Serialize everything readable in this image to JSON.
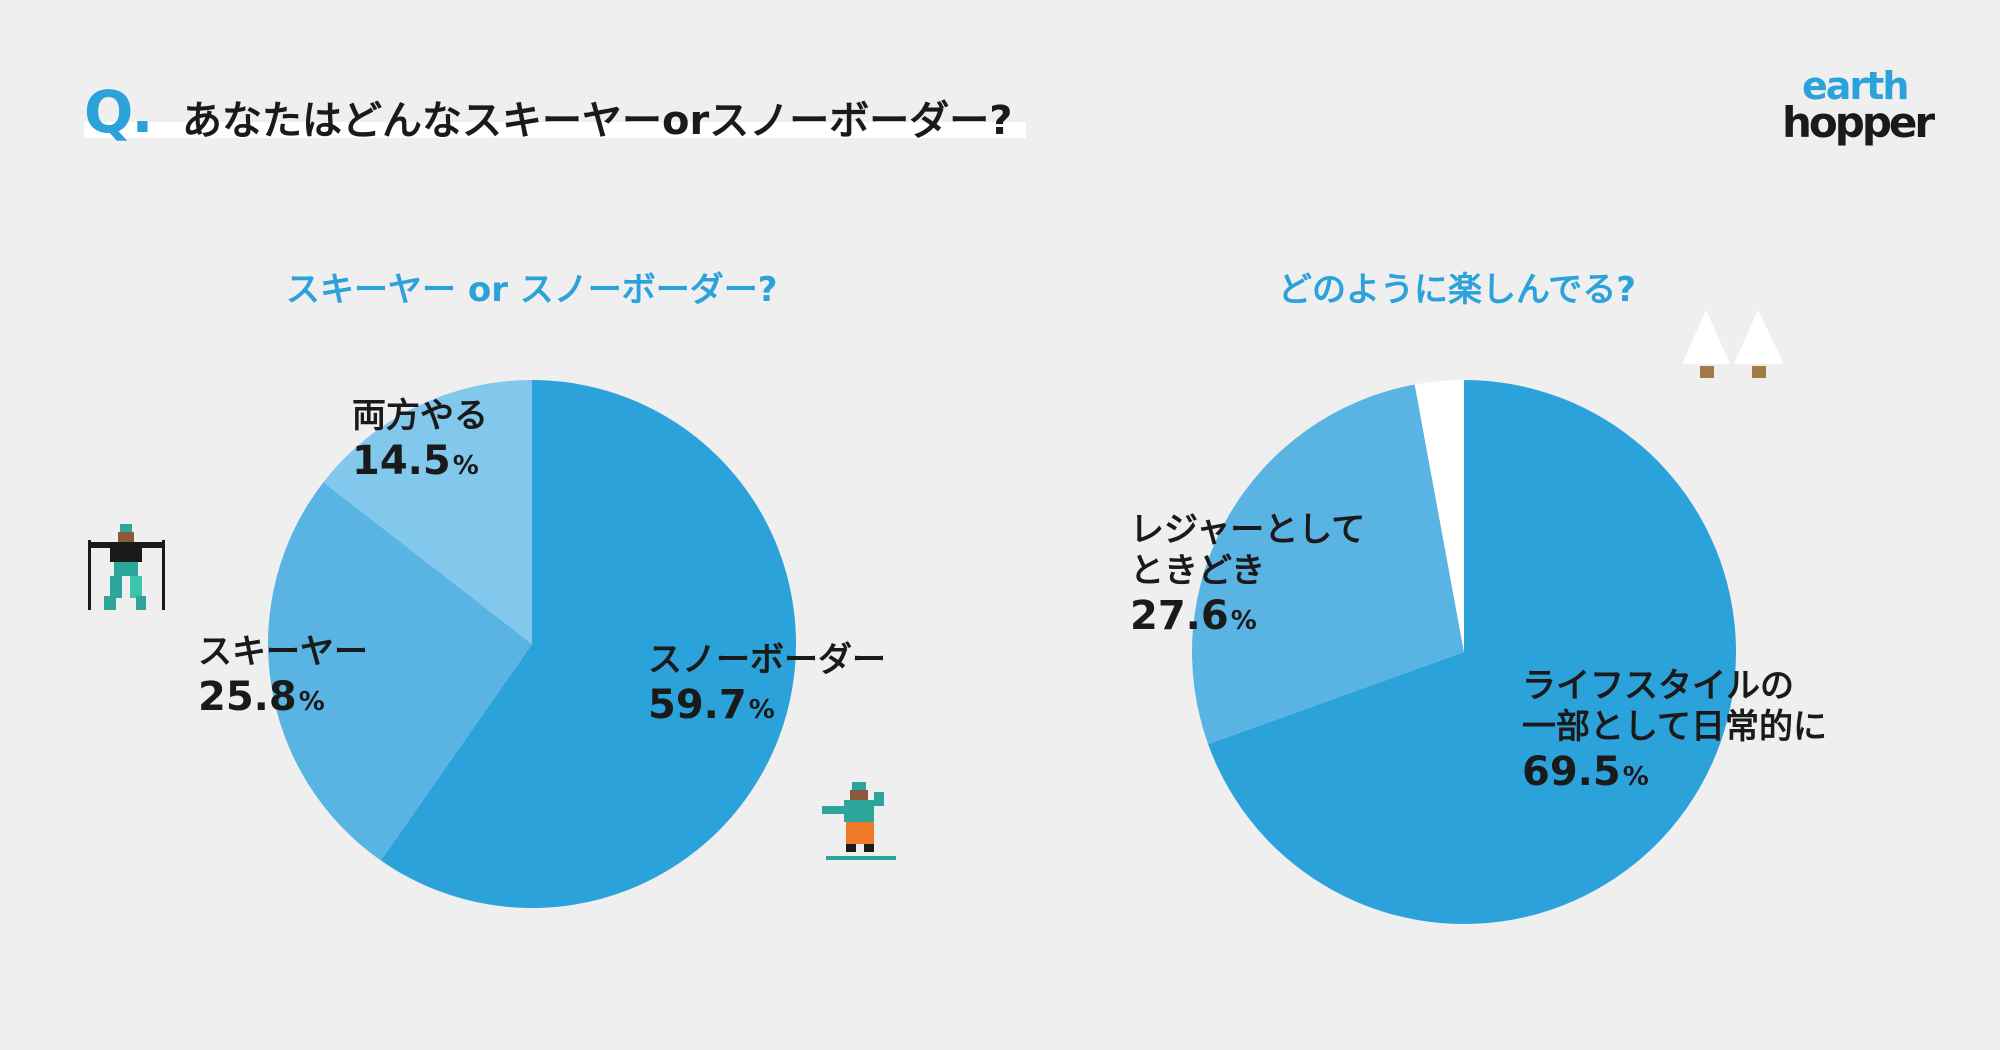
{
  "header": {
    "q_label": "Q",
    "q_dot": ".",
    "question": "あなたはどんなスキーヤーorスノーボーダー?"
  },
  "logo": {
    "line1": "earth",
    "line2": "hopper"
  },
  "colors": {
    "accent": "#2ca2db",
    "mid": "#5ab4e3",
    "light": "#82c7ec",
    "white": "#ffffff"
  },
  "icons": [
    "skier-icon",
    "snowboarder-icon",
    "trees-icon"
  ],
  "chart_data": [
    {
      "type": "pie",
      "title": "スキーヤー or スノーボーダー?",
      "slices": [
        {
          "name": "スノーボーダー",
          "value": 59.7,
          "color": "#2ca2db"
        },
        {
          "name": "スキーヤー",
          "value": 25.8,
          "color": "#5ab4e3"
        },
        {
          "name": "両方やる",
          "value": 14.5,
          "color": "#82c7ec"
        }
      ],
      "unit": "%"
    },
    {
      "type": "pie",
      "title": "どのように楽しんでる?",
      "slices": [
        {
          "name": "ライフスタイルの一部として日常的に",
          "name_lines": [
            "ライフスタイルの",
            "一部として日常的に"
          ],
          "value": 69.5,
          "color": "#2ca2db"
        },
        {
          "name": "レジャーとしてときどき",
          "name_lines": [
            "レジャーとして",
            "ときどき"
          ],
          "value": 27.6,
          "color": "#5ab4e3"
        },
        {
          "name": "",
          "value": 2.9,
          "color": "#ffffff"
        }
      ],
      "unit": "%"
    }
  ]
}
